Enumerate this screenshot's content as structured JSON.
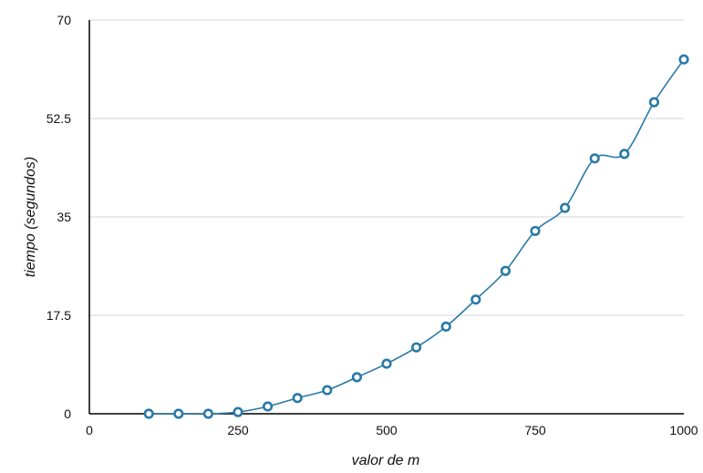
{
  "chart_data": {
    "type": "line",
    "title": "",
    "xlabel": "valor de m",
    "ylabel": "tiempo (segundos)",
    "xlim": [
      0,
      1000
    ],
    "ylim": [
      0,
      70
    ],
    "x_ticks": [
      "0",
      "250",
      "500",
      "750",
      "1000"
    ],
    "y_ticks": [
      "0",
      "17.5",
      "35",
      "52.5",
      "70"
    ],
    "grid": "horizontal",
    "series": [
      {
        "color": "#2a7aa6",
        "x": [
          100,
          150,
          200,
          250,
          300,
          350,
          400,
          450,
          500,
          550,
          600,
          650,
          700,
          750,
          800,
          850,
          900,
          950,
          1000
        ],
        "y": [
          0,
          0,
          0,
          0.3,
          1.3,
          2.8,
          4.2,
          6.5,
          8.9,
          11.8,
          15.5,
          20.3,
          25.4,
          32.5,
          36.6,
          45.4,
          46.2,
          55.4,
          63.0
        ]
      }
    ]
  }
}
